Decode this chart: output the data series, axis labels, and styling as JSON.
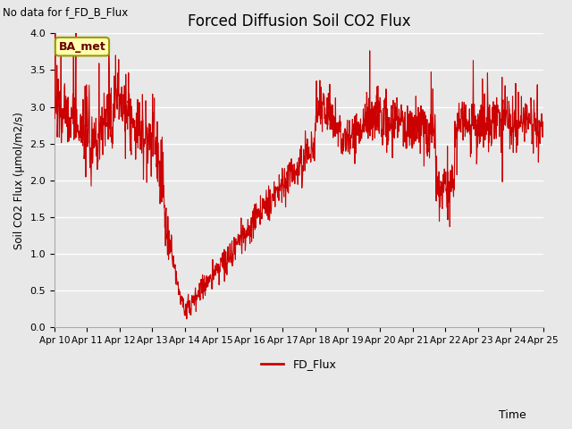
{
  "title": "Forced Diffusion Soil CO2 Flux",
  "xlabel": "Time",
  "ylabel": "Soil CO2 Flux (μmol/m2/s)",
  "no_data_text": "No data for f_FD_B_Flux",
  "legend_label": "FD_Flux",
  "line_color": "#CC0000",
  "line_width": 0.8,
  "bg_color": "#E8E8E8",
  "plot_bg_color": "#E8E8E8",
  "annotation_text": "BA_met",
  "annotation_box_color": "#FFFFB0",
  "annotation_box_edge": "#999900",
  "ylim": [
    0.0,
    4.0
  ],
  "yticks": [
    0.0,
    0.5,
    1.0,
    1.5,
    2.0,
    2.5,
    3.0,
    3.5,
    4.0
  ],
  "xtick_days": [
    10,
    11,
    12,
    13,
    14,
    15,
    16,
    17,
    18,
    19,
    20,
    21,
    22,
    23,
    24,
    25
  ],
  "xtick_labels": [
    "Apr 10",
    "Apr 11",
    "Apr 12",
    "Apr 13",
    "Apr 14",
    "Apr 15",
    "Apr 16",
    "Apr 17",
    "Apr 18",
    "Apr 19",
    "Apr 20",
    "Apr 21",
    "Apr 22",
    "Apr 23",
    "Apr 24",
    "Apr 25"
  ],
  "figsize": [
    6.4,
    4.8
  ],
  "dpi": 100
}
